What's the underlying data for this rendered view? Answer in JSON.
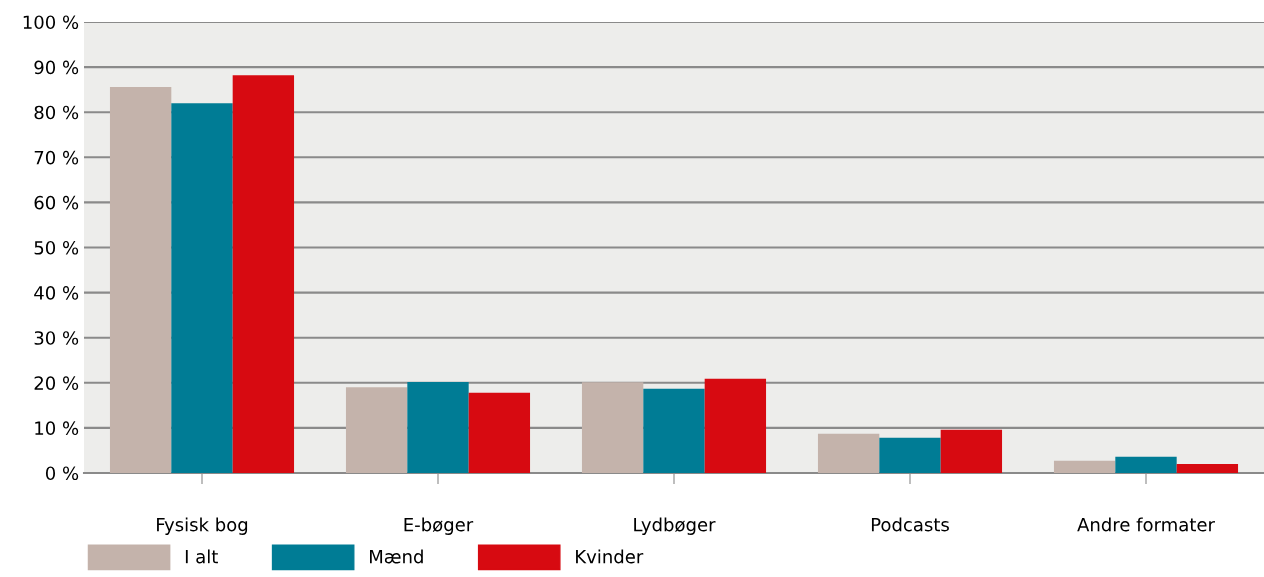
{
  "chart_data": {
    "type": "bar",
    "categories": [
      "Fysisk bog",
      "E-bøger",
      "Lydbøger",
      "Podcasts",
      "Andre formater"
    ],
    "series": [
      {
        "name": "I alt",
        "color": "#c4b3ab",
        "values": [
          85.6,
          19.0,
          20.1,
          8.7,
          2.7
        ]
      },
      {
        "name": "Mænd",
        "color": "#007c95",
        "values": [
          82.0,
          20.2,
          18.7,
          7.8,
          3.6
        ]
      },
      {
        "name": "Kvinder",
        "color": "#d70a11",
        "values": [
          88.2,
          17.8,
          20.9,
          9.6,
          2.0
        ]
      }
    ],
    "ylim": [
      0,
      100
    ],
    "yticks": [
      {
        "value": 0,
        "label": "0 %"
      },
      {
        "value": 10,
        "label": "10 %"
      },
      {
        "value": 20,
        "label": "20 %"
      },
      {
        "value": 30,
        "label": "30 %"
      },
      {
        "value": 40,
        "label": "40 %"
      },
      {
        "value": 50,
        "label": "50 %"
      },
      {
        "value": 60,
        "label": "60 %"
      },
      {
        "value": 70,
        "label": "70 %"
      },
      {
        "value": 80,
        "label": "80 %"
      },
      {
        "value": 90,
        "label": "90 %"
      },
      {
        "value": 100,
        "label": "100 %"
      }
    ],
    "grid": "y",
    "legend": "bottom left"
  }
}
